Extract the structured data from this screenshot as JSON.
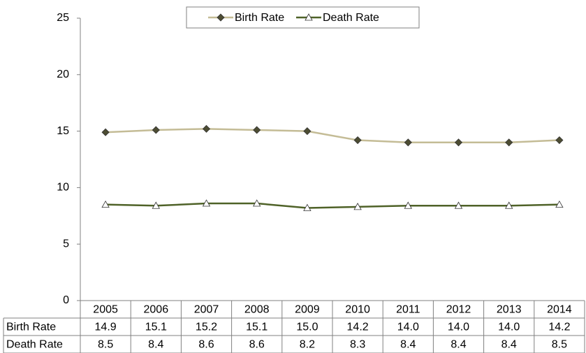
{
  "chart_data": {
    "type": "line",
    "categories": [
      "2005",
      "2006",
      "2007",
      "2008",
      "2009",
      "2010",
      "2011",
      "2012",
      "2013",
      "2014"
    ],
    "series": [
      {
        "name": "Birth Rate",
        "color": "#c4bc96",
        "marker_color": "#4d4d33",
        "marker": "diamond",
        "values": [
          14.9,
          15.1,
          15.2,
          15.1,
          15.0,
          14.2,
          14.0,
          14.0,
          14.0,
          14.2
        ],
        "value_labels": [
          "14.9",
          "15.1",
          "15.2",
          "15.1",
          "15.0",
          "14.2",
          "14.0",
          "14.0",
          "14.0",
          "14.2"
        ]
      },
      {
        "name": "Death Rate",
        "color": "#4f6228",
        "marker_color": "#ffffff",
        "marker": "triangle",
        "values": [
          8.5,
          8.4,
          8.6,
          8.6,
          8.2,
          8.3,
          8.4,
          8.4,
          8.4,
          8.5
        ],
        "value_labels": [
          "8.5",
          "8.4",
          "8.6",
          "8.6",
          "8.2",
          "8.3",
          "8.4",
          "8.4",
          "8.4",
          "8.5"
        ]
      }
    ],
    "ylim": [
      0,
      25
    ],
    "yticks": [
      0,
      5,
      10,
      15,
      20,
      25
    ],
    "grid": false,
    "legend": "top",
    "data_table": true
  }
}
